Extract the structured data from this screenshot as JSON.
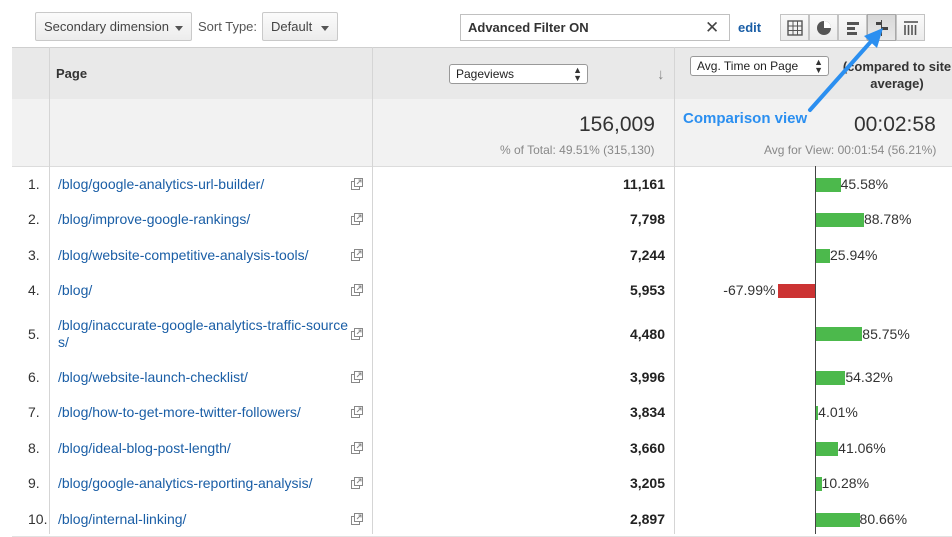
{
  "toolbar": {
    "secondary_dimension": "Secondary dimension",
    "sort_type_label": "Sort Type:",
    "sort_type_value": "Default",
    "filter_value": "Advanced Filter ON",
    "edit_label": "edit"
  },
  "view_buttons": [
    "table-view-icon",
    "pie-view-icon",
    "performance-view-icon",
    "comparison-view-icon",
    "pivot-view-icon"
  ],
  "columns": {
    "page": "Page",
    "metric1": "Pageviews",
    "metric2": "Avg. Time on Page",
    "compared_text": "(compared to site average)"
  },
  "summary": {
    "pageviews_total": "156,009",
    "pageviews_sub": "% of Total: 49.51% (315,130)",
    "avg_time": "00:02:58",
    "avg_time_sub": "Avg for View: 00:01:54 (56.21%)"
  },
  "annotation": "Comparison view",
  "colors": {
    "positive": "#4cb94c",
    "negative": "#cc3333",
    "link": "#1a5ea6",
    "annotation": "#2b8ff0"
  },
  "rows": [
    {
      "n": "1.",
      "page": "/blog/google-analytics-url-builder/",
      "pageviews": "11,161",
      "comparison": "45.58%",
      "value": 45.58
    },
    {
      "n": "2.",
      "page": "/blog/improve-google-rankings/",
      "pageviews": "7,798",
      "comparison": "88.78%",
      "value": 88.78
    },
    {
      "n": "3.",
      "page": "/blog/website-competitive-analysis-tools/",
      "pageviews": "7,244",
      "comparison": "25.94%",
      "value": 25.94
    },
    {
      "n": "4.",
      "page": "/blog/",
      "pageviews": "5,953",
      "comparison": "-67.99%",
      "value": -67.99
    },
    {
      "n": "5.",
      "page": "/blog/inaccurate-google-analytics-traffic-sources/",
      "pageviews": "4,480",
      "comparison": "85.75%",
      "value": 85.75
    },
    {
      "n": "6.",
      "page": "/blog/website-launch-checklist/",
      "pageviews": "3,996",
      "comparison": "54.32%",
      "value": 54.32
    },
    {
      "n": "7.",
      "page": "/blog/how-to-get-more-twitter-followers/",
      "pageviews": "3,834",
      "comparison": "4.01%",
      "value": 4.01
    },
    {
      "n": "8.",
      "page": "/blog/ideal-blog-post-length/",
      "pageviews": "3,660",
      "comparison": "41.06%",
      "value": 41.06
    },
    {
      "n": "9.",
      "page": "/blog/google-analytics-reporting-analysis/",
      "pageviews": "3,205",
      "comparison": "10.28%",
      "value": 10.28
    },
    {
      "n": "10.",
      "page": "/blog/internal-linking/",
      "pageviews": "2,897",
      "comparison": "80.66%",
      "value": 80.66
    }
  ]
}
